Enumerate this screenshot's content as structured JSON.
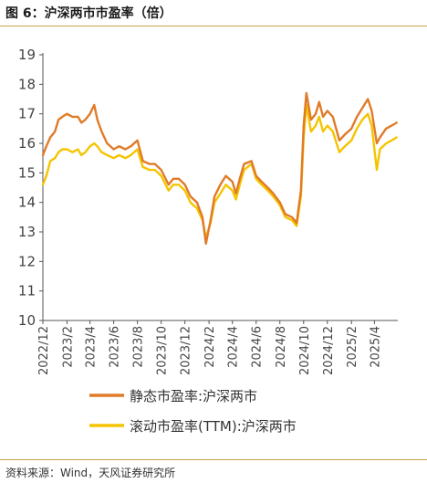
{
  "figure": {
    "title": "图 6：沪深两市市盈率（倍）",
    "source": "资料来源：Wind，天风证券研究所"
  },
  "colors": {
    "static_pe": "#E07B28",
    "ttm_pe": "#F5C400",
    "accent_rule": "#C9A24A",
    "axis": "#555555"
  },
  "chart_data": {
    "type": "line",
    "x_type": "date",
    "x_range": [
      "2022-12-01",
      "2025-05-31"
    ],
    "ylim": [
      10,
      19
    ],
    "yticks": [
      10,
      11,
      12,
      13,
      14,
      15,
      16,
      17,
      18,
      19
    ],
    "xticks": [
      "2022/12",
      "2023/2",
      "2023/4",
      "2023/6",
      "2023/8",
      "2023/10",
      "2023/12",
      "2024/2",
      "2024/4",
      "2024/6",
      "2024/8",
      "2024/10",
      "2024/12",
      "2025/2",
      "2025/4"
    ],
    "grid": false,
    "legend_position": "bottom",
    "series": [
      {
        "name": "静态市盈率:沪深两市",
        "color": "#E07B28",
        "points": [
          [
            "2022-12-01",
            15.6
          ],
          [
            "2022-12-10",
            15.9
          ],
          [
            "2022-12-20",
            16.2
          ],
          [
            "2023-01-01",
            16.4
          ],
          [
            "2023-01-10",
            16.8
          ],
          [
            "2023-01-20",
            16.9
          ],
          [
            "2023-02-01",
            17.0
          ],
          [
            "2023-02-15",
            16.9
          ],
          [
            "2023-03-01",
            16.9
          ],
          [
            "2023-03-10",
            16.7
          ],
          [
            "2023-03-20",
            16.8
          ],
          [
            "2023-04-01",
            17.0
          ],
          [
            "2023-04-12",
            17.3
          ],
          [
            "2023-04-20",
            16.8
          ],
          [
            "2023-05-01",
            16.4
          ],
          [
            "2023-05-15",
            16.0
          ],
          [
            "2023-06-01",
            15.8
          ],
          [
            "2023-06-15",
            15.9
          ],
          [
            "2023-07-01",
            15.8
          ],
          [
            "2023-07-15",
            15.9
          ],
          [
            "2023-08-01",
            16.1
          ],
          [
            "2023-08-15",
            15.4
          ],
          [
            "2023-09-01",
            15.3
          ],
          [
            "2023-09-15",
            15.3
          ],
          [
            "2023-10-01",
            15.1
          ],
          [
            "2023-10-20",
            14.6
          ],
          [
            "2023-11-01",
            14.8
          ],
          [
            "2023-11-15",
            14.8
          ],
          [
            "2023-12-01",
            14.6
          ],
          [
            "2023-12-15",
            14.2
          ],
          [
            "2024-01-01",
            14.0
          ],
          [
            "2024-01-15",
            13.5
          ],
          [
            "2024-01-24",
            12.6
          ],
          [
            "2024-02-05",
            13.4
          ],
          [
            "2024-02-15",
            14.2
          ],
          [
            "2024-03-01",
            14.6
          ],
          [
            "2024-03-15",
            14.9
          ],
          [
            "2024-04-01",
            14.7
          ],
          [
            "2024-04-10",
            14.3
          ],
          [
            "2024-04-20",
            14.8
          ],
          [
            "2024-05-01",
            15.3
          ],
          [
            "2024-05-20",
            15.4
          ],
          [
            "2024-06-01",
            14.9
          ],
          [
            "2024-06-15",
            14.7
          ],
          [
            "2024-07-01",
            14.5
          ],
          [
            "2024-07-15",
            14.3
          ],
          [
            "2024-08-01",
            14.0
          ],
          [
            "2024-08-15",
            13.6
          ],
          [
            "2024-09-01",
            13.5
          ],
          [
            "2024-09-13",
            13.3
          ],
          [
            "2024-09-24",
            14.4
          ],
          [
            "2024-10-01",
            16.6
          ],
          [
            "2024-10-08",
            17.7
          ],
          [
            "2024-10-20",
            16.8
          ],
          [
            "2024-11-01",
            17.0
          ],
          [
            "2024-11-10",
            17.4
          ],
          [
            "2024-11-20",
            16.9
          ],
          [
            "2024-12-01",
            17.1
          ],
          [
            "2024-12-15",
            16.9
          ],
          [
            "2025-01-01",
            16.1
          ],
          [
            "2025-01-15",
            16.3
          ],
          [
            "2025-02-01",
            16.5
          ],
          [
            "2025-02-15",
            16.9
          ],
          [
            "2025-03-01",
            17.2
          ],
          [
            "2025-03-15",
            17.5
          ],
          [
            "2025-03-25",
            17.1
          ],
          [
            "2025-04-07",
            16.0
          ],
          [
            "2025-04-15",
            16.2
          ],
          [
            "2025-05-01",
            16.5
          ],
          [
            "2025-05-15",
            16.6
          ],
          [
            "2025-05-28",
            16.7
          ]
        ]
      },
      {
        "name": "滚动市盈率(TTM):沪深两市",
        "color": "#F5C400",
        "points": [
          [
            "2022-12-01",
            14.6
          ],
          [
            "2022-12-10",
            14.9
          ],
          [
            "2022-12-20",
            15.4
          ],
          [
            "2023-01-01",
            15.5
          ],
          [
            "2023-01-10",
            15.7
          ],
          [
            "2023-01-20",
            15.8
          ],
          [
            "2023-02-01",
            15.8
          ],
          [
            "2023-02-15",
            15.7
          ],
          [
            "2023-03-01",
            15.8
          ],
          [
            "2023-03-10",
            15.6
          ],
          [
            "2023-03-20",
            15.7
          ],
          [
            "2023-04-01",
            15.9
          ],
          [
            "2023-04-12",
            16.0
          ],
          [
            "2023-04-20",
            15.9
          ],
          [
            "2023-05-01",
            15.7
          ],
          [
            "2023-05-15",
            15.6
          ],
          [
            "2023-06-01",
            15.5
          ],
          [
            "2023-06-15",
            15.6
          ],
          [
            "2023-07-01",
            15.5
          ],
          [
            "2023-07-15",
            15.6
          ],
          [
            "2023-08-01",
            15.8
          ],
          [
            "2023-08-15",
            15.2
          ],
          [
            "2023-09-01",
            15.1
          ],
          [
            "2023-09-15",
            15.1
          ],
          [
            "2023-10-01",
            14.9
          ],
          [
            "2023-10-20",
            14.4
          ],
          [
            "2023-11-01",
            14.6
          ],
          [
            "2023-11-15",
            14.6
          ],
          [
            "2023-12-01",
            14.4
          ],
          [
            "2023-12-15",
            14.0
          ],
          [
            "2024-01-01",
            13.8
          ],
          [
            "2024-01-15",
            13.4
          ],
          [
            "2024-01-24",
            12.8
          ],
          [
            "2024-02-05",
            13.3
          ],
          [
            "2024-02-15",
            14.0
          ],
          [
            "2024-03-01",
            14.3
          ],
          [
            "2024-03-15",
            14.6
          ],
          [
            "2024-04-01",
            14.4
          ],
          [
            "2024-04-10",
            14.1
          ],
          [
            "2024-04-20",
            14.6
          ],
          [
            "2024-05-01",
            15.1
          ],
          [
            "2024-05-20",
            15.3
          ],
          [
            "2024-06-01",
            14.8
          ],
          [
            "2024-06-15",
            14.6
          ],
          [
            "2024-07-01",
            14.4
          ],
          [
            "2024-07-15",
            14.2
          ],
          [
            "2024-08-01",
            13.9
          ],
          [
            "2024-08-15",
            13.5
          ],
          [
            "2024-09-01",
            13.4
          ],
          [
            "2024-09-13",
            13.2
          ],
          [
            "2024-09-24",
            14.2
          ],
          [
            "2024-10-01",
            16.2
          ],
          [
            "2024-10-08",
            17.3
          ],
          [
            "2024-10-20",
            16.4
          ],
          [
            "2024-11-01",
            16.6
          ],
          [
            "2024-11-10",
            16.9
          ],
          [
            "2024-11-20",
            16.4
          ],
          [
            "2024-12-01",
            16.6
          ],
          [
            "2024-12-15",
            16.4
          ],
          [
            "2025-01-01",
            15.7
          ],
          [
            "2025-01-15",
            15.9
          ],
          [
            "2025-02-01",
            16.1
          ],
          [
            "2025-02-15",
            16.5
          ],
          [
            "2025-03-01",
            16.8
          ],
          [
            "2025-03-15",
            17.0
          ],
          [
            "2025-03-25",
            16.6
          ],
          [
            "2025-04-07",
            15.1
          ],
          [
            "2025-04-15",
            15.8
          ],
          [
            "2025-05-01",
            16.0
          ],
          [
            "2025-05-15",
            16.1
          ],
          [
            "2025-05-28",
            16.2
          ]
        ]
      }
    ]
  }
}
